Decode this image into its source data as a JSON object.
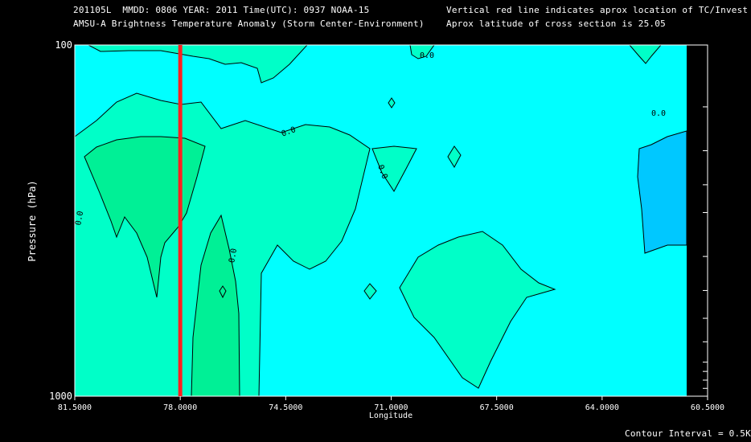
{
  "header": {
    "line1_left": "201105L  MMDD: 0806 YEAR: 2011 Time(UTC): 0937 NOAA-15",
    "line2_left": "AMSU-A Brightness Temperature Anomaly (Storm Center-Environment)",
    "line1_right": "Vertical red line indicates aprox location of TC/Invest",
    "line2_right": "Aprox latitude of cross section is 25.05"
  },
  "footer": {
    "contour_interval": "Contour Interval = 0.5K"
  },
  "colors": {
    "background": "#000000",
    "plot_background": "#00FFFF",
    "band_0_to_0_5": "#00FFC8",
    "band_0_5_to_1": "#00F096",
    "band_neg": "#00C8FF",
    "storm_line": "#FF2020"
  },
  "chart_data": {
    "type": "contour",
    "title": "AMSU-A Brightness Temperature Anomaly (Storm Center-Environment)",
    "xlabel": "Longitude",
    "ylabel": "Pressure (hPa)",
    "xlim": [
      81.5,
      60.5
    ],
    "ylim": [
      1000,
      100
    ],
    "y_scale": "log",
    "x_tick_labels": [
      "81.5000",
      "78.0000",
      "74.5000",
      "71.0000",
      "67.5000",
      "64.0000",
      "60.5000"
    ],
    "x_ticks": [
      81.5,
      78.0,
      74.5,
      71.0,
      67.5,
      64.0,
      60.5
    ],
    "y_tick_labels": [
      "100",
      "1000"
    ],
    "y_ticks": [
      100,
      1000
    ],
    "contour_labels": [
      "0.0",
      "0.0",
      "0.0",
      "0.0",
      "0.0",
      "0.0"
    ],
    "contour_interval_K": 0.5,
    "storm_longitude": 78.0,
    "cross_section_latitude": 25.05,
    "pressure_levels_with_ticks": [
      100,
      150,
      200,
      250,
      300,
      400,
      500,
      600,
      700,
      800,
      850,
      900,
      950,
      1000
    ],
    "grid": false
  }
}
